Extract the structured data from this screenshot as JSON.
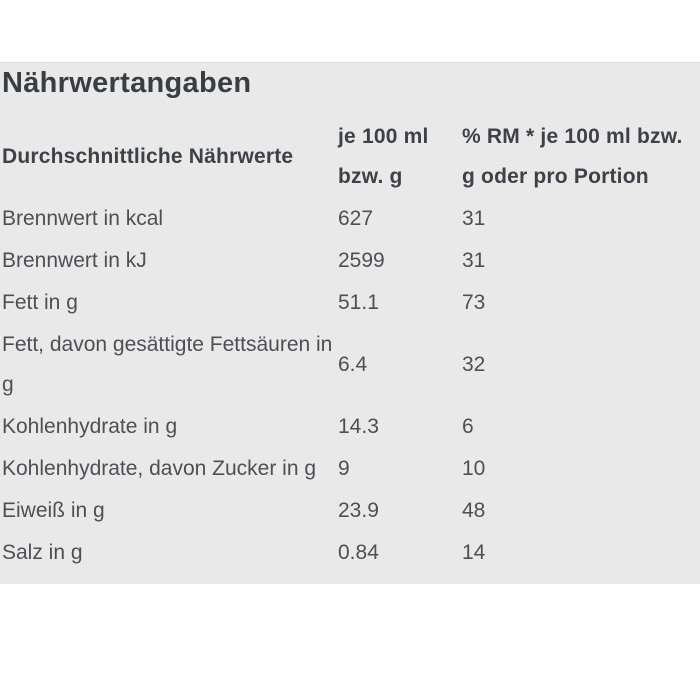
{
  "title": "Nährwertangaben",
  "table": {
    "columns": {
      "label": "Durchschnittliche Nährwerte",
      "per100": "je 100 ml bzw. g",
      "rm": "% RM * je 100 ml bzw. g oder pro Portion"
    },
    "rows": [
      {
        "label": "Brennwert in kcal",
        "per100": "627",
        "rm": "31"
      },
      {
        "label": "Brennwert in kJ",
        "per100": "2599",
        "rm": "31"
      },
      {
        "label": "Fett in g",
        "per100": "51.1",
        "rm": "73"
      },
      {
        "label": "Fett, davon gesättigte Fettsäuren in g",
        "per100": "6.4",
        "rm": "32"
      },
      {
        "label": "Kohlenhydrate in g",
        "per100": "14.3",
        "rm": "6"
      },
      {
        "label": "Kohlenhydrate, davon Zucker in g",
        "per100": "9",
        "rm": "10"
      },
      {
        "label": "Eiweiß in g",
        "per100": "23.9",
        "rm": "48"
      },
      {
        "label": "Salz in g",
        "per100": "0.84",
        "rm": "14"
      }
    ]
  },
  "colors": {
    "panel_background": "#e9e9e9",
    "panel_top_border": "#dcdcdc",
    "title_text": "#393e44",
    "header_text": "#3d4249",
    "body_text": "#4c5055",
    "page_background": "#ffffff"
  }
}
